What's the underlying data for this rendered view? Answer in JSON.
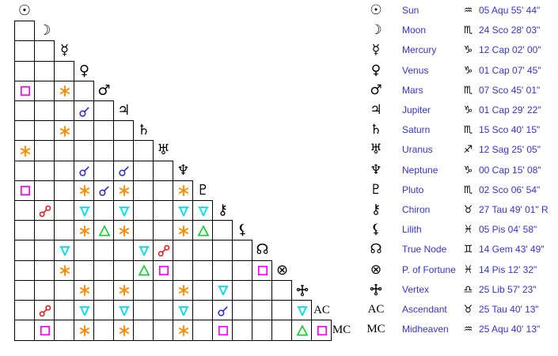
{
  "colors": {
    "background": "#ffffff",
    "grid_line": "#000000",
    "glyph": "#000000",
    "table_text": "#3434d6"
  },
  "aspect_types": {
    "conjunction": {
      "label": "conjunction",
      "color": "#2929d6"
    },
    "opposition": {
      "label": "opposition",
      "color": "#ee1111"
    },
    "square": {
      "label": "square",
      "color": "#ff00ff"
    },
    "trine": {
      "label": "trine",
      "color": "#00cc22"
    },
    "sextile": {
      "label": "sextile",
      "color": "#ff8c00"
    },
    "quincunx": {
      "label": "quincunx",
      "color": "#00dbe6"
    }
  },
  "planets": [
    {
      "id": "sun",
      "glyph": "☉",
      "name": "Sun",
      "sign": "Aquarius",
      "sign_glyph": "♒",
      "position": "05 Aqu 55' 44\""
    },
    {
      "id": "moon",
      "glyph": "☽",
      "name": "Moon",
      "sign": "Scorpio",
      "sign_glyph": "♏",
      "position": "24 Sco 28' 03\""
    },
    {
      "id": "mercury",
      "glyph": "☿",
      "name": "Mercury",
      "sign": "Capricorn",
      "sign_glyph": "♑",
      "position": "12 Cap 02' 00\""
    },
    {
      "id": "venus",
      "glyph": "♀",
      "name": "Venus",
      "sign": "Capricorn",
      "sign_glyph": "♑",
      "position": "01 Cap 07' 45\""
    },
    {
      "id": "mars",
      "glyph": "♂",
      "name": "Mars",
      "sign": "Scorpio",
      "sign_glyph": "♏",
      "position": "07 Sco 45' 01\""
    },
    {
      "id": "jupiter",
      "glyph": "♃",
      "name": "Jupiter",
      "sign": "Capricorn",
      "sign_glyph": "♑",
      "position": "01 Cap 29' 22\""
    },
    {
      "id": "saturn",
      "glyph": "♄",
      "name": "Saturn",
      "sign": "Scorpio",
      "sign_glyph": "♏",
      "position": "15 Sco 40' 15\""
    },
    {
      "id": "uranus",
      "glyph": "♅",
      "name": "Uranus",
      "sign": "Sagittarius",
      "sign_glyph": "♐",
      "position": "12 Sag 25' 05\""
    },
    {
      "id": "neptune",
      "glyph": "♆",
      "name": "Neptune",
      "sign": "Capricorn",
      "sign_glyph": "♑",
      "position": "00 Cap 15' 08\""
    },
    {
      "id": "pluto",
      "glyph": "♇",
      "name": "Pluto",
      "sign": "Scorpio",
      "sign_glyph": "♏",
      "position": "02 Sco 06' 54\""
    },
    {
      "id": "chiron",
      "glyph": "⚷",
      "name": "Chiron",
      "sign": "Taurus",
      "sign_glyph": "♉",
      "position": "27 Tau 49' 01\" R"
    },
    {
      "id": "lilith",
      "glyph": "⚸",
      "name": "Lilith",
      "sign": "Pisces",
      "sign_glyph": "♓",
      "position": "05 Pis 04' 58\""
    },
    {
      "id": "true_node",
      "glyph": "☊",
      "name": "True Node",
      "sign": "Gemini",
      "sign_glyph": "♊",
      "position": "14 Gem 43' 49\""
    },
    {
      "id": "fortune",
      "glyph": "⊗",
      "name": "P. of Fortune",
      "sign": "Pisces",
      "sign_glyph": "♓",
      "position": "14 Pis 12' 32\""
    },
    {
      "id": "vertex",
      "glyph": "vertex-svg",
      "name": "Vertex",
      "sign": "Libra",
      "sign_glyph": "♎",
      "position": "25 Lib 57' 23\""
    },
    {
      "id": "ac",
      "glyph": "AC",
      "name": "Ascendant",
      "sign": "Taurus",
      "sign_glyph": "♉",
      "position": "25 Tau 40' 13\""
    },
    {
      "id": "mc",
      "glyph": "MC",
      "name": "Midheaven",
      "sign": "Aquarius",
      "sign_glyph": "♒",
      "position": "25 Aqu 40' 13\""
    }
  ],
  "grid": {
    "aspects": [
      {
        "row": "mars",
        "col": "sun",
        "type": "square"
      },
      {
        "row": "mars",
        "col": "mercury",
        "type": "sextile"
      },
      {
        "row": "jupiter",
        "col": "venus",
        "type": "conjunction"
      },
      {
        "row": "saturn",
        "col": "mercury",
        "type": "sextile"
      },
      {
        "row": "uranus",
        "col": "sun",
        "type": "sextile"
      },
      {
        "row": "neptune",
        "col": "venus",
        "type": "conjunction"
      },
      {
        "row": "neptune",
        "col": "jupiter",
        "type": "conjunction"
      },
      {
        "row": "pluto",
        "col": "sun",
        "type": "square"
      },
      {
        "row": "pluto",
        "col": "venus",
        "type": "sextile"
      },
      {
        "row": "pluto",
        "col": "mars",
        "type": "conjunction"
      },
      {
        "row": "pluto",
        "col": "jupiter",
        "type": "sextile"
      },
      {
        "row": "pluto",
        "col": "neptune",
        "type": "sextile"
      },
      {
        "row": "chiron",
        "col": "moon",
        "type": "opposition"
      },
      {
        "row": "chiron",
        "col": "venus",
        "type": "quincunx"
      },
      {
        "row": "chiron",
        "col": "jupiter",
        "type": "quincunx"
      },
      {
        "row": "chiron",
        "col": "neptune",
        "type": "quincunx"
      },
      {
        "row": "chiron",
        "col": "pluto",
        "type": "quincunx"
      },
      {
        "row": "lilith",
        "col": "venus",
        "type": "sextile"
      },
      {
        "row": "lilith",
        "col": "mars",
        "type": "trine"
      },
      {
        "row": "lilith",
        "col": "jupiter",
        "type": "sextile"
      },
      {
        "row": "lilith",
        "col": "neptune",
        "type": "sextile"
      },
      {
        "row": "lilith",
        "col": "pluto",
        "type": "trine"
      },
      {
        "row": "true_node",
        "col": "mercury",
        "type": "quincunx"
      },
      {
        "row": "true_node",
        "col": "saturn",
        "type": "quincunx"
      },
      {
        "row": "true_node",
        "col": "uranus",
        "type": "opposition"
      },
      {
        "row": "fortune",
        "col": "mercury",
        "type": "sextile"
      },
      {
        "row": "fortune",
        "col": "saturn",
        "type": "trine"
      },
      {
        "row": "fortune",
        "col": "uranus",
        "type": "square"
      },
      {
        "row": "fortune",
        "col": "true_node",
        "type": "square"
      },
      {
        "row": "vertex",
        "col": "venus",
        "type": "sextile"
      },
      {
        "row": "vertex",
        "col": "jupiter",
        "type": "sextile"
      },
      {
        "row": "vertex",
        "col": "neptune",
        "type": "sextile"
      },
      {
        "row": "vertex",
        "col": "chiron",
        "type": "quincunx"
      },
      {
        "row": "ac",
        "col": "moon",
        "type": "opposition"
      },
      {
        "row": "ac",
        "col": "venus",
        "type": "quincunx"
      },
      {
        "row": "ac",
        "col": "jupiter",
        "type": "quincunx"
      },
      {
        "row": "ac",
        "col": "neptune",
        "type": "quincunx"
      },
      {
        "row": "ac",
        "col": "chiron",
        "type": "conjunction"
      },
      {
        "row": "ac",
        "col": "vertex",
        "type": "quincunx"
      },
      {
        "row": "mc",
        "col": "moon",
        "type": "square"
      },
      {
        "row": "mc",
        "col": "venus",
        "type": "sextile"
      },
      {
        "row": "mc",
        "col": "jupiter",
        "type": "sextile"
      },
      {
        "row": "mc",
        "col": "neptune",
        "type": "sextile"
      },
      {
        "row": "mc",
        "col": "chiron",
        "type": "square"
      },
      {
        "row": "mc",
        "col": "vertex",
        "type": "trine"
      },
      {
        "row": "mc",
        "col": "ac",
        "type": "square"
      }
    ]
  }
}
